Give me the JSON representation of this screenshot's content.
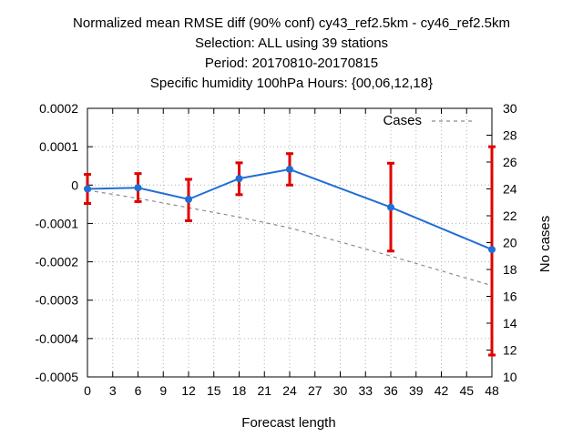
{
  "chart_data": {
    "type": "line",
    "title_lines": [
      "Normalized mean RMSE diff (90% conf) cy43_ref2.5km - cy46_ref2.5km",
      "Selection: ALL using    39 stations",
      "Period: 20170810-20170815",
      "Specific humidity 100hPa   Hours: {00,06,12,18}"
    ],
    "xlabel": "Forecast length",
    "ylabel": "",
    "y2label": "No cases",
    "xlim": [
      0,
      48
    ],
    "ylim": [
      -0.0005,
      0.0002
    ],
    "y2lim": [
      10,
      30
    ],
    "x_ticks": [
      "0",
      "3",
      "6",
      "9",
      "12",
      "15",
      "18",
      "21",
      "24",
      "27",
      "30",
      "33",
      "36",
      "39",
      "42",
      "45",
      "48"
    ],
    "y_ticks": [
      "0.0002",
      "0.0001",
      "0",
      "-0.0001",
      "-0.0002",
      "-0.0003",
      "-0.0004",
      "-0.0005"
    ],
    "y2_ticks": [
      "30",
      "28",
      "26",
      "24",
      "22",
      "20",
      "18",
      "16",
      "14",
      "12",
      "10"
    ],
    "grid": true,
    "legend_position": "top-right",
    "colors": {
      "diff": "#1f6fd6",
      "errorbar": "#e00000",
      "cases": "#8c8c8c"
    },
    "series": [
      {
        "kind": "mean_diff",
        "x": [
          0,
          6,
          12,
          18,
          24,
          36,
          48
        ],
        "y": [
          -1e-05,
          -7e-06,
          -3.7e-05,
          1.7e-05,
          4.1e-05,
          -5.8e-05,
          -0.000168
        ],
        "err_low": [
          -4.8e-05,
          -4.3e-05,
          -9.3e-05,
          -2.5e-05,
          0.0,
          -0.000172,
          -0.000443
        ],
        "err_high": [
          2.8e-05,
          3e-05,
          1.5e-05,
          5.8e-05,
          8.2e-05,
          5.7e-05,
          0.0001
        ]
      },
      {
        "name": "Cases",
        "axis": "y2",
        "x": [
          0,
          6,
          12,
          18,
          24,
          36,
          48
        ],
        "y": [
          23.9,
          23.3,
          22.6,
          21.9,
          21.1,
          19.0,
          16.8
        ]
      }
    ]
  }
}
